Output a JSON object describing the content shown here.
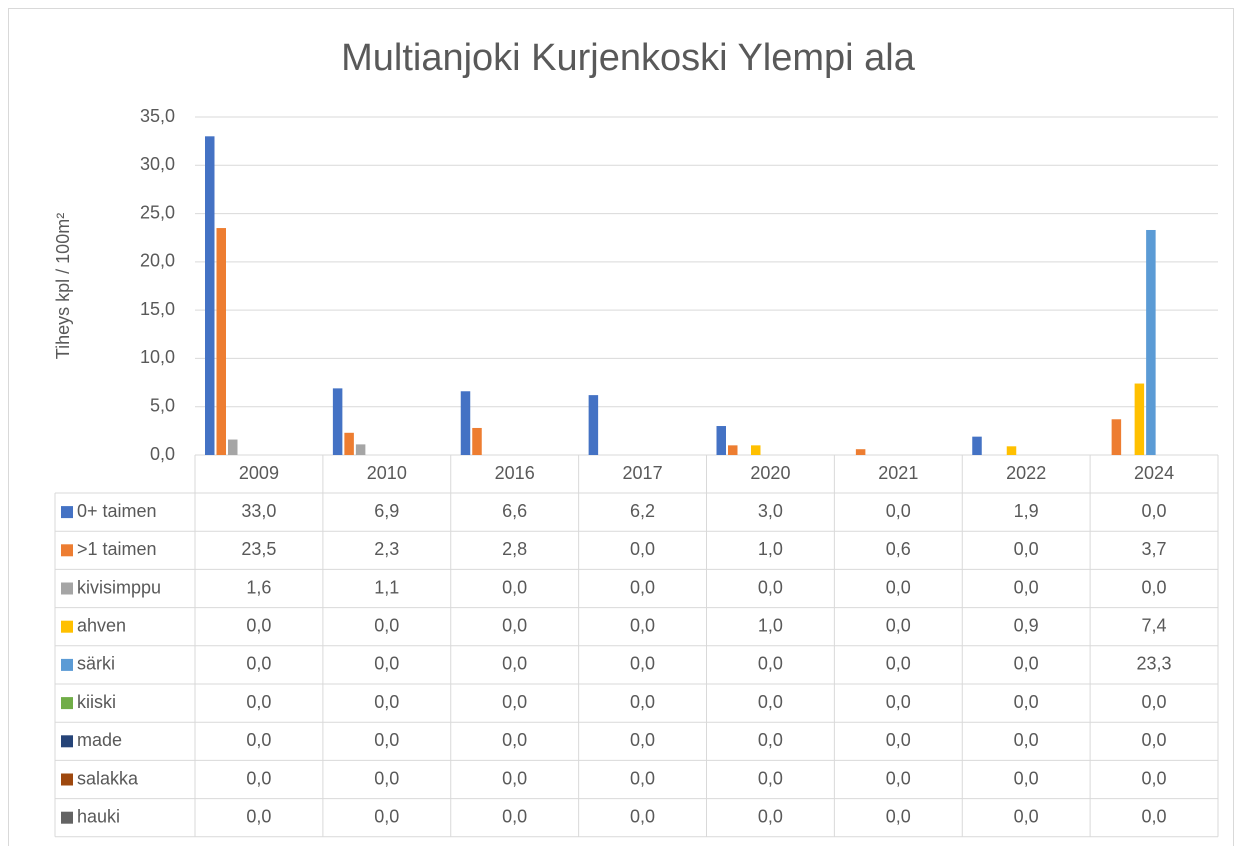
{
  "chart_data": {
    "type": "bar",
    "title": "Multianjoki Kurjenkoski Ylempi ala",
    "y_label": "Tiheys kpl / 100m²",
    "categories": [
      "2009",
      "2010",
      "2016",
      "2017",
      "2020",
      "2021",
      "2022",
      "2024"
    ],
    "ylim": [
      0,
      35
    ],
    "yticks": [
      {
        "value": 0,
        "label": "0,0"
      },
      {
        "value": 5,
        "label": "5,0"
      },
      {
        "value": 10,
        "label": "10,0"
      },
      {
        "value": 15,
        "label": "15,0"
      },
      {
        "value": 20,
        "label": "20,0"
      },
      {
        "value": 25,
        "label": "25,0"
      },
      {
        "value": 30,
        "label": "30,0"
      },
      {
        "value": 35,
        "label": "35,0"
      }
    ],
    "grid": true,
    "series": [
      {
        "name": "0+ taimen",
        "color": "#4472c4",
        "values": [
          33.0,
          6.9,
          6.6,
          6.2,
          3.0,
          0.0,
          1.9,
          0.0
        ],
        "value_labels": [
          "33,0",
          "6,9",
          "6,6",
          "6,2",
          "3,0",
          "0,0",
          "1,9",
          "0,0"
        ]
      },
      {
        "name": ">1 taimen",
        "color": "#ed7d31",
        "values": [
          23.5,
          2.3,
          2.8,
          0.0,
          1.0,
          0.6,
          0.0,
          3.7
        ],
        "value_labels": [
          "23,5",
          "2,3",
          "2,8",
          "0,0",
          "1,0",
          "0,6",
          "0,0",
          "3,7"
        ]
      },
      {
        "name": "kivisimppu",
        "color": "#a5a5a5",
        "values": [
          1.6,
          1.1,
          0.0,
          0.0,
          0.0,
          0.0,
          0.0,
          0.0
        ],
        "value_labels": [
          "1,6",
          "1,1",
          "0,0",
          "0,0",
          "0,0",
          "0,0",
          "0,0",
          "0,0"
        ]
      },
      {
        "name": "ahven",
        "color": "#ffc000",
        "values": [
          0.0,
          0.0,
          0.0,
          0.0,
          1.0,
          0.0,
          0.9,
          7.4
        ],
        "value_labels": [
          "0,0",
          "0,0",
          "0,0",
          "0,0",
          "1,0",
          "0,0",
          "0,9",
          "7,4"
        ]
      },
      {
        "name": "särki",
        "color": "#5b9bd5",
        "values": [
          0.0,
          0.0,
          0.0,
          0.0,
          0.0,
          0.0,
          0.0,
          23.3
        ],
        "value_labels": [
          "0,0",
          "0,0",
          "0,0",
          "0,0",
          "0,0",
          "0,0",
          "0,0",
          "23,3"
        ]
      },
      {
        "name": "kiiski",
        "color": "#70ad47",
        "values": [
          0.0,
          0.0,
          0.0,
          0.0,
          0.0,
          0.0,
          0.0,
          0.0
        ],
        "value_labels": [
          "0,0",
          "0,0",
          "0,0",
          "0,0",
          "0,0",
          "0,0",
          "0,0",
          "0,0"
        ]
      },
      {
        "name": "made",
        "color": "#264478",
        "values": [
          0.0,
          0.0,
          0.0,
          0.0,
          0.0,
          0.0,
          0.0,
          0.0
        ],
        "value_labels": [
          "0,0",
          "0,0",
          "0,0",
          "0,0",
          "0,0",
          "0,0",
          "0,0",
          "0,0"
        ]
      },
      {
        "name": "salakka",
        "color": "#9e480e",
        "values": [
          0.0,
          0.0,
          0.0,
          0.0,
          0.0,
          0.0,
          0.0,
          0.0
        ],
        "value_labels": [
          "0,0",
          "0,0",
          "0,0",
          "0,0",
          "0,0",
          "0,0",
          "0,0",
          "0,0"
        ]
      },
      {
        "name": "hauki",
        "color": "#636363",
        "values": [
          0.0,
          0.0,
          0.0,
          0.0,
          0.0,
          0.0,
          0.0,
          0.0
        ],
        "value_labels": [
          "0,0",
          "0,0",
          "0,0",
          "0,0",
          "0,0",
          "0,0",
          "0,0",
          "0,0"
        ]
      }
    ]
  }
}
